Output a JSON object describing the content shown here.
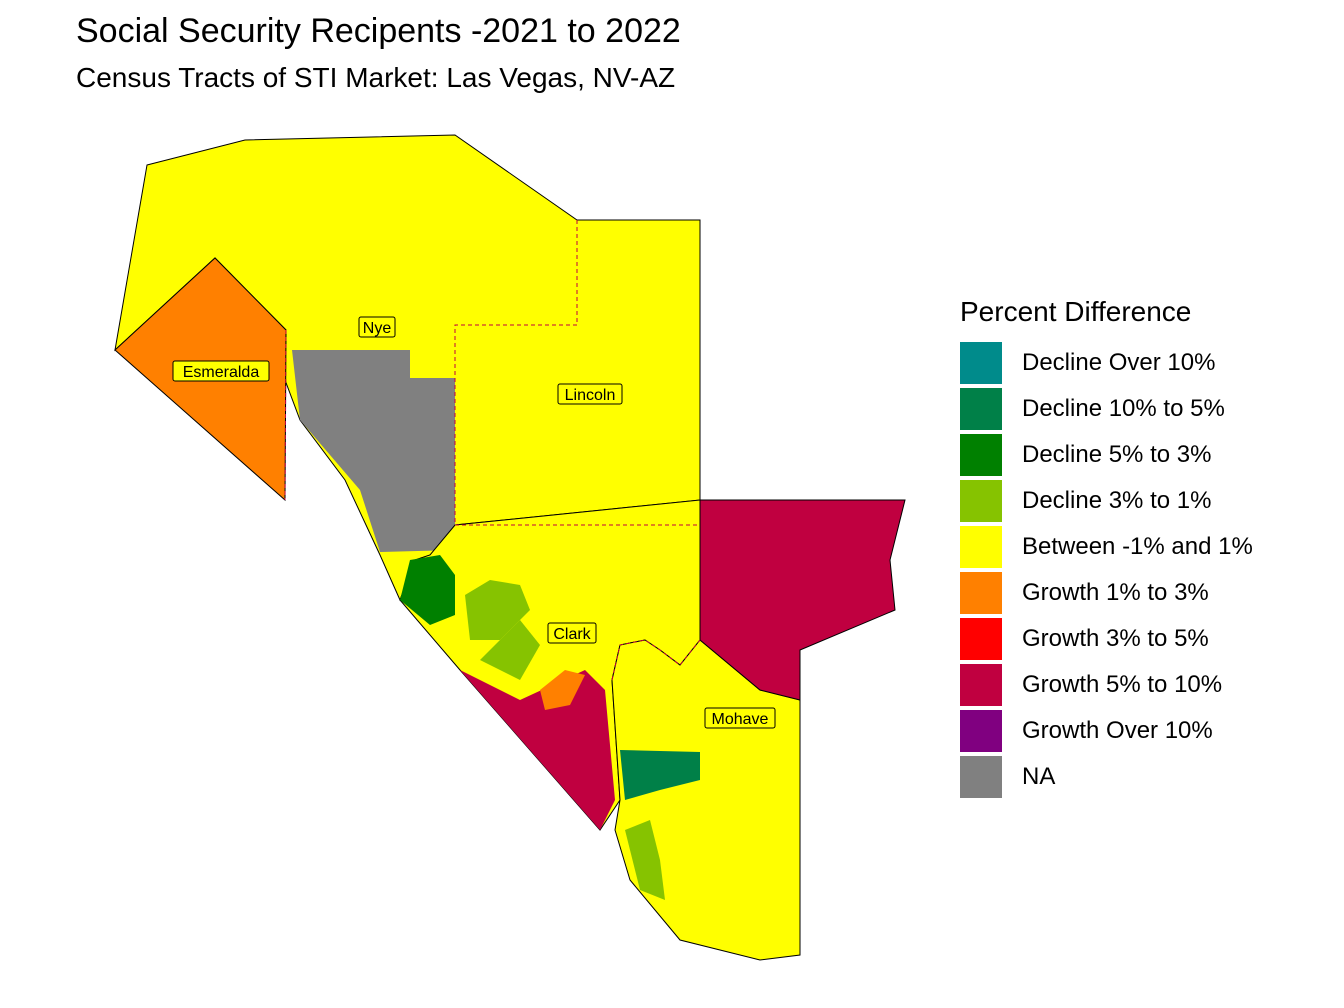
{
  "title": "Social Security Recipents -2021 to 2022",
  "subtitle": "Census Tracts of STI Market: Las Vegas, NV-AZ",
  "legend": {
    "title": "Percent Difference",
    "items": [
      {
        "label": "Decline Over 10%",
        "color": "#008b8b"
      },
      {
        "label": "Decline 10% to 5%",
        "color": "#008048"
      },
      {
        "label": "Decline 5% to 3%",
        "color": "#008000"
      },
      {
        "label": "Decline 3% to 1%",
        "color": "#86c300"
      },
      {
        "label": "Between -1% and 1%",
        "color": "#ffff00"
      },
      {
        "label": "Growth 1% to 3%",
        "color": "#ff8000"
      },
      {
        "label": "Growth 3% to 5%",
        "color": "#ff0000"
      },
      {
        "label": "Growth 5% to 10%",
        "color": "#c00040"
      },
      {
        "label": "Growth Over 10%",
        "color": "#800080"
      },
      {
        "label": "NA",
        "color": "#808080"
      }
    ]
  },
  "counties": {
    "nye": "Nye",
    "esmeralda": "Esmeralda",
    "lincoln": "Lincoln",
    "clark": "Clark",
    "mohave": "Mohave"
  }
}
